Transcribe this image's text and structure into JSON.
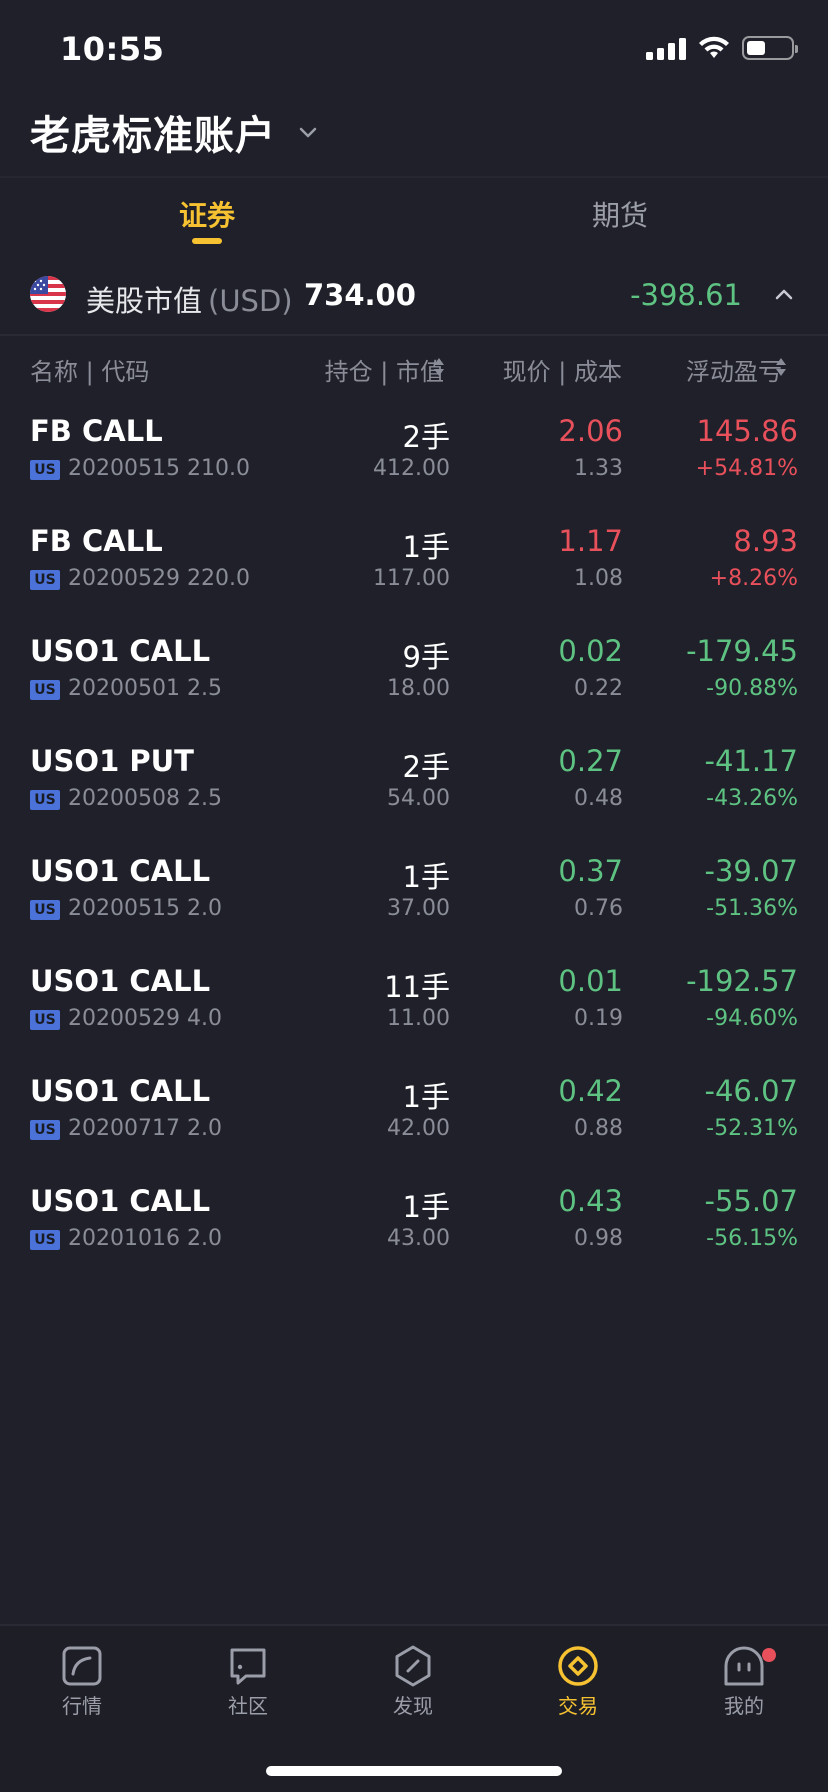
{
  "status_bar": {
    "time": "10:55"
  },
  "account": {
    "title": "老虎标准账户"
  },
  "tabs": {
    "securities": "证券",
    "futures": "期货"
  },
  "market": {
    "label": "美股市值",
    "currency": "(USD)",
    "value": "734.00",
    "pl": "-398.61"
  },
  "columns": {
    "name": "名称 | 代码",
    "position": "持仓 | 市值",
    "price": "现价 | 成本",
    "pl": "浮动盈亏"
  },
  "holdings": [
    {
      "name": "FB CALL",
      "badge": "US",
      "code": "20200515 210.0",
      "qty": "2手",
      "mv": "412.00",
      "price": "2.06",
      "cost": "1.33",
      "pl": "145.86",
      "plpct": "+54.81%"
    },
    {
      "name": "FB CALL",
      "badge": "US",
      "code": "20200529 220.0",
      "qty": "1手",
      "mv": "117.00",
      "price": "1.17",
      "cost": "1.08",
      "pl": "8.93",
      "plpct": "+8.26%"
    },
    {
      "name": "USO1 CALL",
      "badge": "US",
      "code": "20200501 2.5",
      "qty": "9手",
      "mv": "18.00",
      "price": "0.02",
      "cost": "0.22",
      "pl": "-179.45",
      "plpct": "-90.88%"
    },
    {
      "name": "USO1 PUT",
      "badge": "US",
      "code": "20200508 2.5",
      "qty": "2手",
      "mv": "54.00",
      "price": "0.27",
      "cost": "0.48",
      "pl": "-41.17",
      "plpct": "-43.26%"
    },
    {
      "name": "USO1 CALL",
      "badge": "US",
      "code": "20200515 2.0",
      "qty": "1手",
      "mv": "37.00",
      "price": "0.37",
      "cost": "0.76",
      "pl": "-39.07",
      "plpct": "-51.36%"
    },
    {
      "name": "USO1 CALL",
      "badge": "US",
      "code": "20200529 4.0",
      "qty": "11手",
      "mv": "11.00",
      "price": "0.01",
      "cost": "0.19",
      "pl": "-192.57",
      "plpct": "-94.60%"
    },
    {
      "name": "USO1 CALL",
      "badge": "US",
      "code": "20200717 2.0",
      "qty": "1手",
      "mv": "42.00",
      "price": "0.42",
      "cost": "0.88",
      "pl": "-46.07",
      "plpct": "-52.31%"
    },
    {
      "name": "USO1 CALL",
      "badge": "US",
      "code": "20201016 2.0",
      "qty": "1手",
      "mv": "43.00",
      "price": "0.43",
      "cost": "0.98",
      "pl": "-55.07",
      "plpct": "-56.15%"
    }
  ],
  "tabbar": {
    "market": "行情",
    "community": "社区",
    "discover": "发现",
    "trade": "交易",
    "me": "我的"
  },
  "colors": {
    "accent": "#f6c232",
    "up": "#e8505b",
    "down": "#5ec382",
    "background": "#1f2029"
  },
  "icons": [
    "signal-icon",
    "wifi-icon",
    "battery-icon",
    "chevron-down-icon",
    "us-flag-icon",
    "chevron-up-icon",
    "sort-icon",
    "market-icon",
    "community-icon",
    "discover-icon",
    "trade-icon",
    "me-icon"
  ]
}
